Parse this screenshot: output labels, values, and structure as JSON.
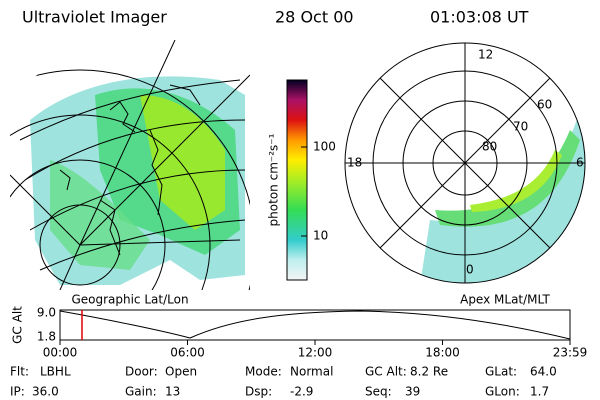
{
  "header": {
    "title": "Ultraviolet Imager",
    "date": "28 Oct 00",
    "time": "01:03:08 UT"
  },
  "colorbar": {
    "label": "photon cm⁻²s⁻¹",
    "ticks": [
      "100",
      "10"
    ]
  },
  "left_panel": {
    "caption": "Geographic Lat/Lon"
  },
  "right_panel": {
    "caption": "Apex MLat/MLT",
    "mlt_labels": [
      "12",
      "18",
      "6",
      "0"
    ],
    "mlat_labels": [
      "60",
      "70",
      "80"
    ]
  },
  "altitude_plot": {
    "ylabel": "GC Alt",
    "yticks": [
      "9.0",
      "1.8"
    ],
    "xticks": [
      "00:00",
      "06:00",
      "12:00",
      "18:00",
      "23:59"
    ]
  },
  "info": [
    [
      {
        "label": "Flt:",
        "value": "LBHL"
      },
      {
        "label": "Door:",
        "value": "Open"
      },
      {
        "label": "Mode:",
        "value": "Normal"
      },
      {
        "label": "GC Alt:",
        "value": "8.2 Re"
      },
      {
        "label": "GLat:",
        "value": "64.0"
      }
    ],
    [
      {
        "label": "IP:",
        "value": "36.0"
      },
      {
        "label": "Gain:",
        "value": "13"
      },
      {
        "label": "Dsp:",
        "value": "-2.9"
      },
      {
        "label": "Seq:",
        "value": "39"
      },
      {
        "label": "GLon:",
        "value": "1.7"
      }
    ]
  ]
}
